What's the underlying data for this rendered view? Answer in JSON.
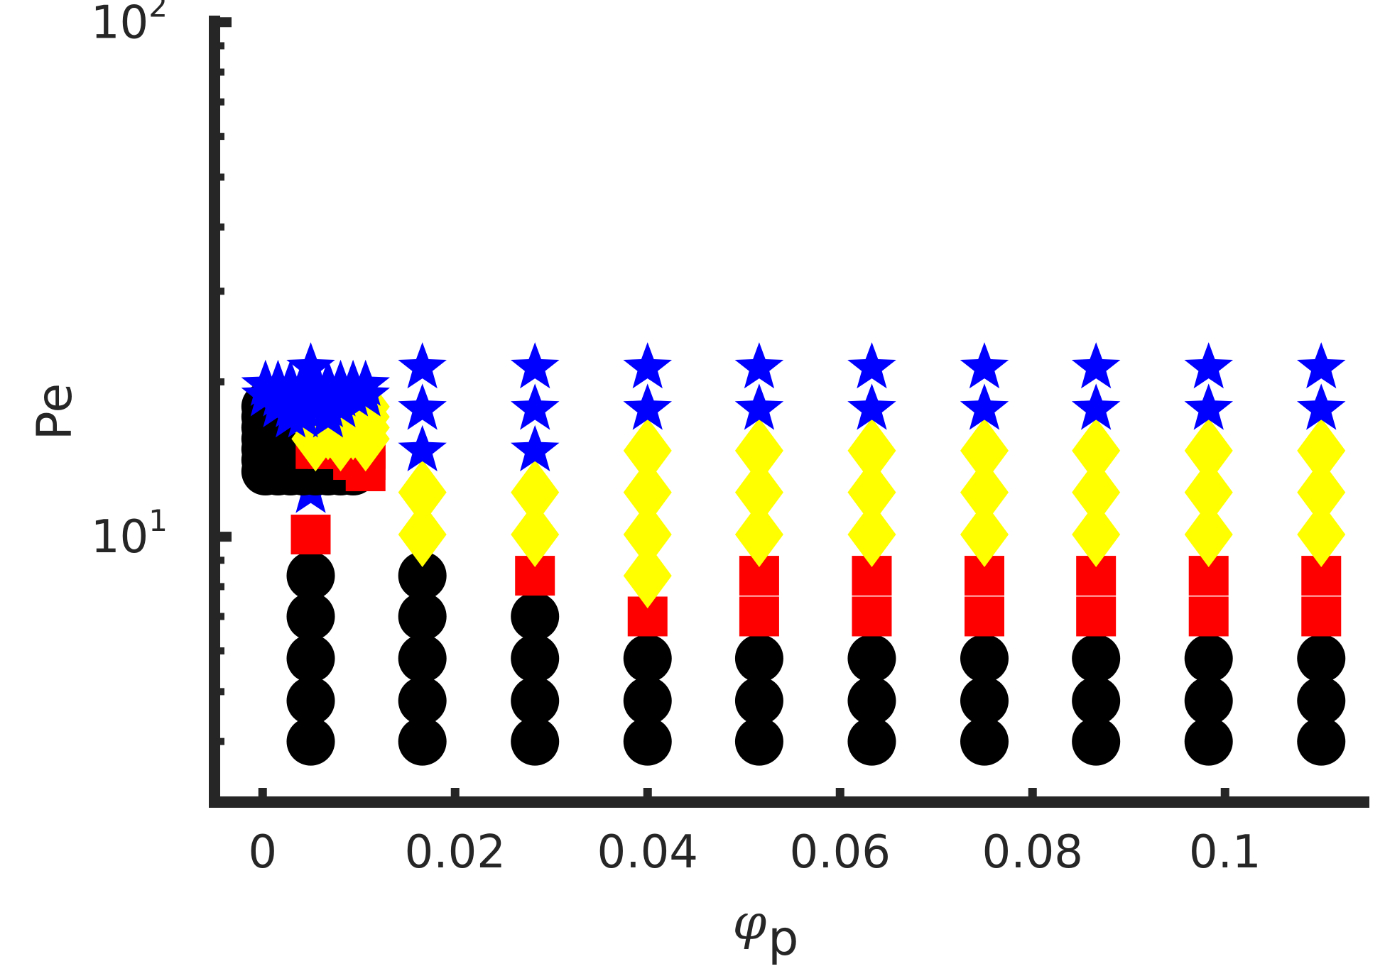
{
  "chart_data": {
    "type": "scatter",
    "title": "",
    "xlabel_symbol": "φ",
    "xlabel_subscript": "p",
    "ylabel": "Pe",
    "x_scale": "linear",
    "y_scale": "log",
    "xlim": [
      -0.005,
      0.115
    ],
    "ylim": [
      3.05,
      103
    ],
    "x_ticks": [
      0,
      0.02,
      0.04,
      0.06,
      0.08,
      0.1
    ],
    "x_tick_labels": [
      "0",
      "0.02",
      "0.04",
      "0.06",
      "0.08",
      "0.1"
    ],
    "y_ticks": [
      10,
      100
    ],
    "y_tick_base": "10",
    "y_tick_exponents": [
      "1",
      "2"
    ],
    "grid": false,
    "legend": "none",
    "colors": {
      "black": "#000000",
      "red": "#ff0000",
      "yellow": "#ffff00",
      "blue": "#0000ff",
      "axis": "#262626"
    },
    "main_grid": {
      "x": [
        0.005,
        0.0166,
        0.0283,
        0.04,
        0.0516,
        0.0633,
        0.075,
        0.0866,
        0.0983,
        0.11
      ],
      "y": [
        4.0,
        4.8,
        5.8,
        7.0,
        8.4,
        10.1,
        12.2,
        14.7,
        17.7,
        21.3
      ],
      "markers": [
        [
          "circle",
          "circle",
          "circle",
          "circle",
          "circle",
          "circle",
          "circle",
          "circle",
          "circle",
          "circle"
        ],
        [
          "circle",
          "circle",
          "circle",
          "circle",
          "circle",
          "circle",
          "circle",
          "circle",
          "circle",
          "circle"
        ],
        [
          "circle",
          "circle",
          "circle",
          "circle",
          "circle",
          "circle",
          "circle",
          "circle",
          "circle",
          "circle"
        ],
        [
          "circle",
          "circle",
          "circle",
          "square",
          "square",
          "square",
          "square",
          "square",
          "square",
          "square"
        ],
        [
          "circle",
          "circle",
          "square",
          "diamond",
          "square",
          "square",
          "square",
          "square",
          "square",
          "square"
        ],
        [
          "square",
          "diamond",
          "diamond",
          "diamond",
          "diamond",
          "diamond",
          "diamond",
          "diamond",
          "diamond",
          "diamond"
        ],
        [
          "star",
          "diamond",
          "diamond",
          "diamond",
          "diamond",
          "diamond",
          "diamond",
          "diamond",
          "diamond",
          "diamond"
        ],
        [
          "star",
          "star",
          "star",
          "diamond",
          "diamond",
          "diamond",
          "diamond",
          "diamond",
          "diamond",
          "diamond"
        ],
        [
          "star",
          "star",
          "star",
          "star",
          "star",
          "star",
          "star",
          "star",
          "star",
          "star"
        ],
        [
          "star",
          "star",
          "star",
          "star",
          "star",
          "star",
          "star",
          "star",
          "star",
          "star"
        ]
      ]
    },
    "dense_grid": {
      "x": [
        0.0003,
        0.0016,
        0.0029,
        0.0042,
        0.0055,
        0.0068,
        0.0081,
        0.0094,
        0.0107
      ],
      "y": [
        13.4,
        14.1,
        14.8,
        15.5,
        16.3,
        17.1,
        17.9,
        18.8,
        19.7
      ],
      "markers": [
        [
          "circle",
          "circle",
          "circle",
          "circle",
          "circle",
          "circle",
          "circle",
          "circle",
          "square"
        ],
        [
          "circle",
          "circle",
          "circle",
          "circle",
          "circle",
          "circle",
          "circle",
          "square",
          "square"
        ],
        [
          "circle",
          "circle",
          "circle",
          "circle",
          "square",
          "square",
          "square",
          "square",
          "square"
        ],
        [
          "circle",
          "circle",
          "circle",
          "circle",
          "diamond",
          "square",
          "diamond",
          "square",
          "diamond"
        ],
        [
          "circle",
          "circle",
          "circle",
          "circle",
          "diamond",
          "diamond",
          "diamond",
          "diamond",
          "diamond"
        ],
        [
          "circle",
          "circle",
          "star",
          "star",
          "diamond",
          "star",
          "diamond",
          "diamond",
          "diamond"
        ],
        [
          "circle",
          "star",
          "star",
          "star",
          "star",
          "star",
          "star",
          "diamond",
          "diamond"
        ],
        [
          "star",
          "star",
          "star",
          "star",
          "star",
          "star",
          "star",
          "star",
          "star"
        ],
        [
          "star",
          "star",
          "star",
          "star",
          "star",
          "star",
          "star",
          "star",
          "star"
        ]
      ]
    }
  }
}
